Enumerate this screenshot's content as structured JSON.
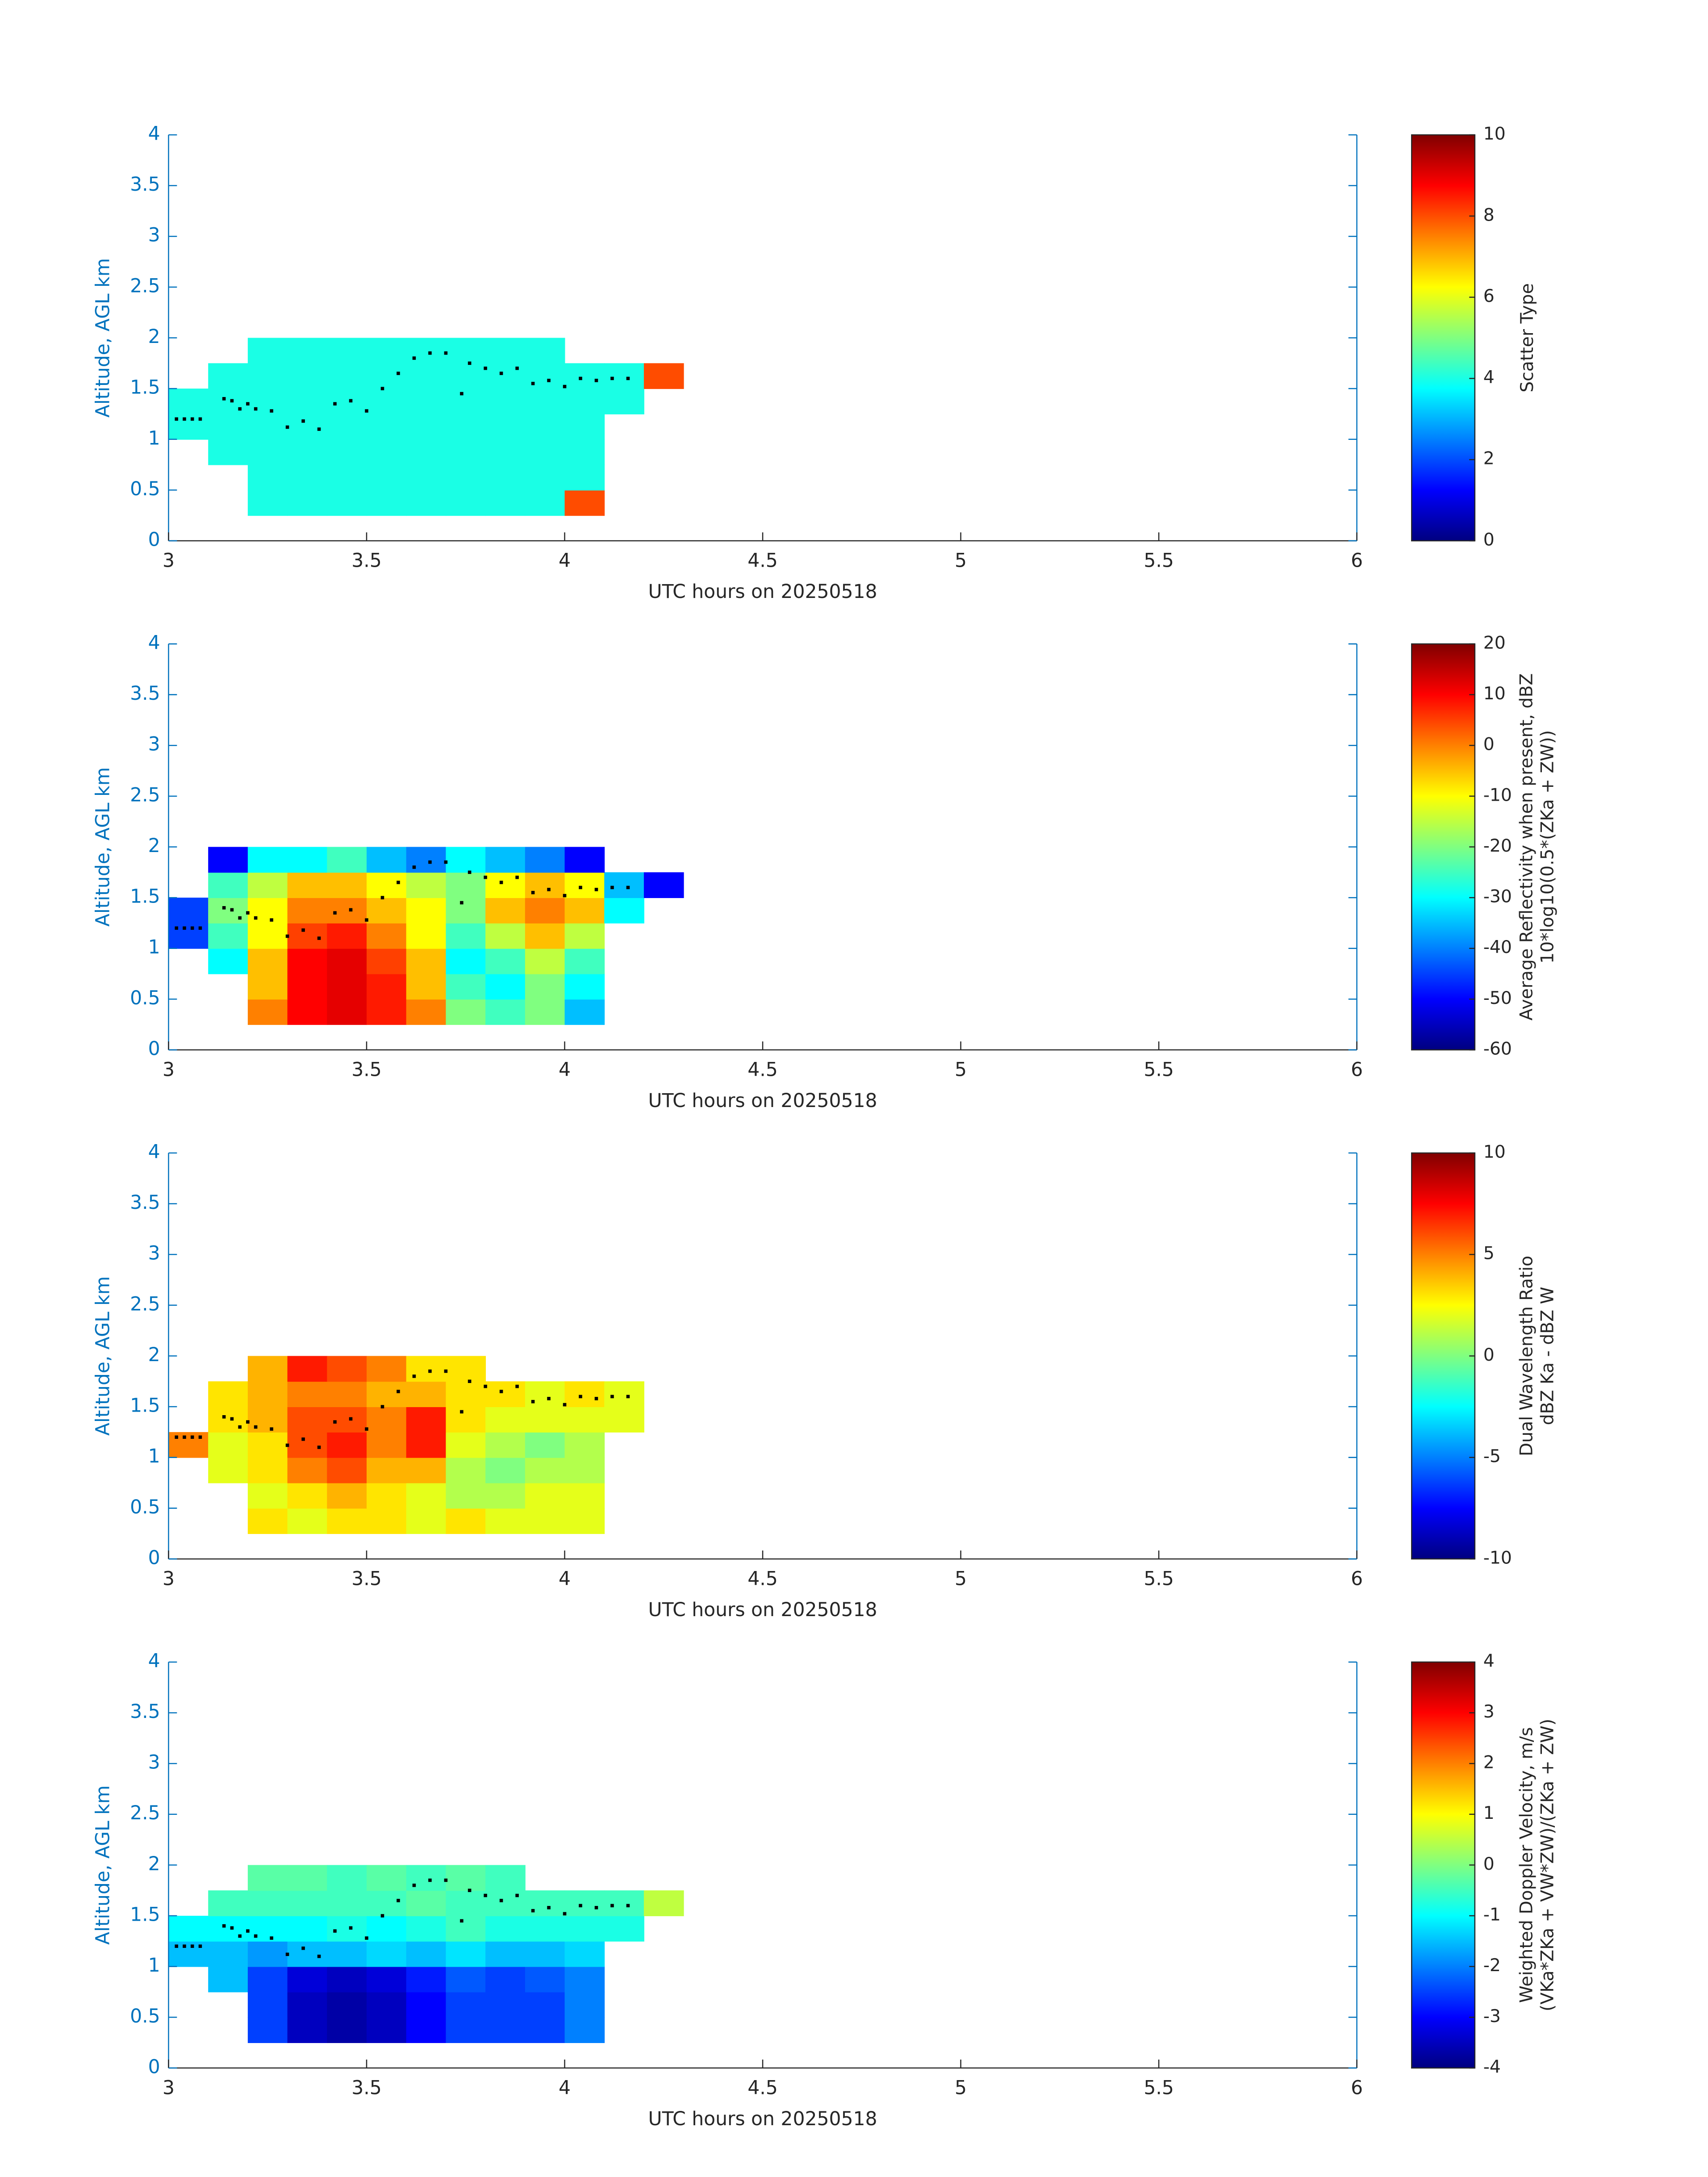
{
  "chart_data": [
    {
      "type": "heatmap",
      "x_label": "UTC hours on 20250518",
      "y_label": "Altitude, AGL km",
      "xlim": [
        3,
        6
      ],
      "ylim": [
        0,
        4
      ],
      "xticks": [
        3,
        3.5,
        4,
        4.5,
        5,
        5.5,
        6
      ],
      "yticks": [
        0,
        0.5,
        1,
        1.5,
        2,
        2.5,
        3,
        3.5,
        4
      ],
      "colormap": "jet",
      "clim": [
        0,
        10
      ],
      "cticks": [
        0,
        2,
        4,
        6,
        8,
        10
      ],
      "colorbar_label": [
        "Scatter Type"
      ],
      "x_bins": [
        3.0,
        3.1,
        3.2,
        3.3,
        3.4,
        3.5,
        3.6,
        3.7,
        3.8,
        3.9,
        4.0,
        4.1,
        4.2,
        4.3
      ],
      "y_bins": [
        0.25,
        0.5,
        0.75,
        1.0,
        1.25,
        1.5,
        1.75,
        2.0
      ],
      "z": [
        [
          null,
          null,
          4,
          4,
          4,
          4,
          4,
          4,
          4,
          4,
          8,
          null,
          null
        ],
        [
          null,
          null,
          4,
          4,
          4,
          4,
          4,
          4,
          4,
          4,
          4,
          null,
          null
        ],
        [
          null,
          4,
          4,
          4,
          4,
          4,
          4,
          4,
          4,
          4,
          4,
          null,
          null
        ],
        [
          4,
          4,
          4,
          4,
          4,
          4,
          4,
          4,
          4,
          4,
          4,
          null,
          null
        ],
        [
          4,
          4,
          4,
          4,
          4,
          4,
          4,
          4,
          4,
          4,
          4,
          4,
          null
        ],
        [
          null,
          4,
          4,
          4,
          4,
          4,
          4,
          4,
          4,
          4,
          4,
          4,
          8
        ],
        [
          null,
          null,
          4,
          4,
          4,
          4,
          4,
          4,
          4,
          4,
          null,
          null,
          null
        ]
      ],
      "points": {
        "x": [
          3.02,
          3.04,
          3.06,
          3.08,
          3.14,
          3.16,
          3.18,
          3.2,
          3.22,
          3.26,
          3.3,
          3.34,
          3.38,
          3.42,
          3.46,
          3.5,
          3.54,
          3.58,
          3.62,
          3.66,
          3.7,
          3.74,
          3.76,
          3.8,
          3.84,
          3.88,
          3.92,
          3.96,
          4.0,
          4.04,
          4.08,
          4.12,
          4.16
        ],
        "y": [
          1.2,
          1.2,
          1.2,
          1.2,
          1.4,
          1.38,
          1.3,
          1.35,
          1.3,
          1.28,
          1.12,
          1.18,
          1.1,
          1.35,
          1.38,
          1.28,
          1.5,
          1.65,
          1.8,
          1.85,
          1.85,
          1.45,
          1.75,
          1.7,
          1.65,
          1.7,
          1.55,
          1.58,
          1.52,
          1.6,
          1.58,
          1.6,
          1.6
        ]
      }
    },
    {
      "type": "heatmap",
      "x_label": "UTC hours on 20250518",
      "y_label": "Altitude, AGL km",
      "xlim": [
        3,
        6
      ],
      "ylim": [
        0,
        4
      ],
      "xticks": [
        3,
        3.5,
        4,
        4.5,
        5,
        5.5,
        6
      ],
      "yticks": [
        0,
        0.5,
        1,
        1.5,
        2,
        2.5,
        3,
        3.5,
        4
      ],
      "colormap": "jet",
      "clim": [
        -60,
        20
      ],
      "cticks": [
        -60,
        -50,
        -40,
        -30,
        -20,
        -10,
        0,
        10,
        20
      ],
      "colorbar_label": [
        "Average Reflectivity when present, dBZ",
        "10*log10(0.5*(ZKa + ZW))"
      ],
      "x_bins": [
        3.0,
        3.1,
        3.2,
        3.3,
        3.4,
        3.5,
        3.6,
        3.7,
        3.8,
        3.9,
        4.0,
        4.1,
        4.2,
        4.3
      ],
      "y_bins": [
        0.25,
        0.5,
        0.75,
        1.0,
        1.25,
        1.5,
        1.75,
        2.0
      ],
      "z": [
        [
          null,
          null,
          0,
          10,
          12,
          8,
          0,
          -20,
          -25,
          -20,
          -35,
          null,
          null
        ],
        [
          null,
          null,
          -5,
          10,
          12,
          8,
          -5,
          -25,
          -30,
          -20,
          -30,
          null,
          null
        ],
        [
          null,
          -30,
          -5,
          10,
          12,
          5,
          -5,
          -30,
          -25,
          -15,
          -25,
          null,
          null
        ],
        [
          -45,
          -25,
          -10,
          5,
          8,
          0,
          -10,
          -25,
          -15,
          -5,
          -15,
          null,
          null
        ],
        [
          -45,
          -20,
          -10,
          0,
          0,
          -5,
          -10,
          -20,
          -5,
          0,
          -5,
          -30,
          null
        ],
        [
          null,
          -25,
          -15,
          -5,
          -5,
          -10,
          -15,
          -20,
          -10,
          -5,
          -10,
          -35,
          -50
        ],
        [
          null,
          -50,
          -30,
          -30,
          -25,
          -35,
          -40,
          -30,
          -35,
          -40,
          -50,
          null,
          null
        ]
      ],
      "points": {
        "x": [
          3.02,
          3.04,
          3.06,
          3.08,
          3.14,
          3.16,
          3.18,
          3.2,
          3.22,
          3.26,
          3.3,
          3.34,
          3.38,
          3.42,
          3.46,
          3.5,
          3.54,
          3.58,
          3.62,
          3.66,
          3.7,
          3.74,
          3.76,
          3.8,
          3.84,
          3.88,
          3.92,
          3.96,
          4.0,
          4.04,
          4.08,
          4.12,
          4.16
        ],
        "y": [
          1.2,
          1.2,
          1.2,
          1.2,
          1.4,
          1.38,
          1.3,
          1.35,
          1.3,
          1.28,
          1.12,
          1.18,
          1.1,
          1.35,
          1.38,
          1.28,
          1.5,
          1.65,
          1.8,
          1.85,
          1.85,
          1.45,
          1.75,
          1.7,
          1.65,
          1.7,
          1.55,
          1.58,
          1.52,
          1.6,
          1.58,
          1.6,
          1.6
        ]
      }
    },
    {
      "type": "heatmap",
      "x_label": "UTC hours on 20250518",
      "y_label": "Altitude, AGL km",
      "xlim": [
        3,
        6
      ],
      "ylim": [
        0,
        4
      ],
      "xticks": [
        3,
        3.5,
        4,
        4.5,
        5,
        5.5,
        6
      ],
      "yticks": [
        0,
        0.5,
        1,
        1.5,
        2,
        2.5,
        3,
        3.5,
        4
      ],
      "colormap": "jet",
      "clim": [
        -10,
        10
      ],
      "cticks": [
        -10,
        -5,
        0,
        5,
        10
      ],
      "colorbar_label": [
        "Dual Wavelength Ratio",
        "dBZ Ka - dBZ W"
      ],
      "x_bins": [
        3.0,
        3.1,
        3.2,
        3.3,
        3.4,
        3.5,
        3.6,
        3.7,
        3.8,
        3.9,
        4.0,
        4.1,
        4.2,
        4.3
      ],
      "y_bins": [
        0.25,
        0.5,
        0.75,
        1.0,
        1.25,
        1.5,
        1.75,
        2.0
      ],
      "z": [
        [
          null,
          null,
          3,
          2,
          3,
          3,
          2,
          3,
          2,
          2,
          2,
          null,
          null
        ],
        [
          null,
          null,
          2,
          3,
          4,
          3,
          2,
          1,
          1,
          2,
          2,
          null,
          null
        ],
        [
          null,
          2,
          3,
          5,
          6,
          4,
          4,
          1,
          0,
          1,
          1,
          null,
          null
        ],
        [
          5,
          2,
          3,
          6,
          7,
          5,
          7,
          2,
          1,
          0,
          1,
          null,
          null
        ],
        [
          null,
          3,
          4,
          6,
          6,
          5,
          7,
          3,
          2,
          2,
          2,
          2,
          null
        ],
        [
          null,
          3,
          4,
          5,
          5,
          4,
          4,
          3,
          3,
          2,
          3,
          2,
          null
        ],
        [
          null,
          null,
          4,
          7,
          6,
          5,
          3,
          3,
          null,
          null,
          null,
          null,
          null
        ]
      ],
      "points": {
        "x": [
          3.02,
          3.04,
          3.06,
          3.08,
          3.14,
          3.16,
          3.18,
          3.2,
          3.22,
          3.26,
          3.3,
          3.34,
          3.38,
          3.42,
          3.46,
          3.5,
          3.54,
          3.58,
          3.62,
          3.66,
          3.7,
          3.74,
          3.76,
          3.8,
          3.84,
          3.88,
          3.92,
          3.96,
          4.0,
          4.04,
          4.08,
          4.12,
          4.16
        ],
        "y": [
          1.2,
          1.2,
          1.2,
          1.2,
          1.4,
          1.38,
          1.3,
          1.35,
          1.3,
          1.28,
          1.12,
          1.18,
          1.1,
          1.35,
          1.38,
          1.28,
          1.5,
          1.65,
          1.8,
          1.85,
          1.85,
          1.45,
          1.75,
          1.7,
          1.65,
          1.7,
          1.55,
          1.58,
          1.52,
          1.6,
          1.58,
          1.6,
          1.6
        ]
      }
    },
    {
      "type": "heatmap",
      "x_label": "UTC hours on 20250518",
      "y_label": "Altitude, AGL km",
      "xlim": [
        3,
        6
      ],
      "ylim": [
        0,
        4
      ],
      "xticks": [
        3,
        3.5,
        4,
        4.5,
        5,
        5.5,
        6
      ],
      "yticks": [
        0,
        0.5,
        1,
        1.5,
        2,
        2.5,
        3,
        3.5,
        4
      ],
      "colormap": "jet",
      "clim": [
        -4,
        4
      ],
      "cticks": [
        -4,
        -3,
        -2,
        -1,
        0,
        1,
        2,
        3,
        4
      ],
      "colorbar_label": [
        "Weighted Doppler Velocity, m/s",
        "(VKa*ZKa + VW*ZW)/(ZKa + ZW)"
      ],
      "x_bins": [
        3.0,
        3.1,
        3.2,
        3.3,
        3.4,
        3.5,
        3.6,
        3.7,
        3.8,
        3.9,
        4.0,
        4.1,
        4.2,
        4.3
      ],
      "y_bins": [
        0.25,
        0.5,
        0.75,
        1.0,
        1.25,
        1.5,
        1.75,
        2.0
      ],
      "z": [
        [
          null,
          null,
          -2.5,
          -3.5,
          -3.7,
          -3.5,
          -3,
          -2.5,
          -2.5,
          -2.5,
          -2,
          null,
          null
        ],
        [
          null,
          null,
          -2.5,
          -3.5,
          -3.7,
          -3.5,
          -3,
          -2.5,
          -2.5,
          -2.5,
          -2,
          null,
          null
        ],
        [
          null,
          -1.5,
          -2.5,
          -3.3,
          -3.5,
          -3.3,
          -2.8,
          -2.3,
          -2.5,
          -2.3,
          -2,
          null,
          null
        ],
        [
          -1.5,
          -1.5,
          -1.8,
          -1.5,
          -1.5,
          -1.3,
          -1.5,
          -1.2,
          -1.5,
          -1.5,
          -1.3,
          null,
          null
        ],
        [
          -1,
          -1,
          -1,
          -1,
          -0.8,
          -1,
          -0.8,
          -0.5,
          -0.8,
          -0.8,
          -0.8,
          -0.8,
          null
        ],
        [
          null,
          -0.5,
          -0.5,
          -0.5,
          -0.5,
          -0.5,
          -0.3,
          -0.5,
          -0.5,
          -0.5,
          -0.5,
          -0.5,
          0.5
        ],
        [
          null,
          null,
          -0.3,
          -0.3,
          -0.5,
          -0.3,
          -0.5,
          -0.3,
          -0.5,
          null,
          null,
          null,
          null
        ]
      ],
      "points": {
        "x": [
          3.02,
          3.04,
          3.06,
          3.08,
          3.14,
          3.16,
          3.18,
          3.2,
          3.22,
          3.26,
          3.3,
          3.34,
          3.38,
          3.42,
          3.46,
          3.5,
          3.54,
          3.58,
          3.62,
          3.66,
          3.7,
          3.74,
          3.76,
          3.8,
          3.84,
          3.88,
          3.92,
          3.96,
          4.0,
          4.04,
          4.08,
          4.12,
          4.16
        ],
        "y": [
          1.2,
          1.2,
          1.2,
          1.2,
          1.4,
          1.38,
          1.3,
          1.35,
          1.3,
          1.28,
          1.12,
          1.18,
          1.1,
          1.35,
          1.38,
          1.28,
          1.5,
          1.65,
          1.8,
          1.85,
          1.85,
          1.45,
          1.75,
          1.7,
          1.65,
          1.7,
          1.55,
          1.58,
          1.52,
          1.6,
          1.58,
          1.6,
          1.6
        ]
      }
    }
  ]
}
